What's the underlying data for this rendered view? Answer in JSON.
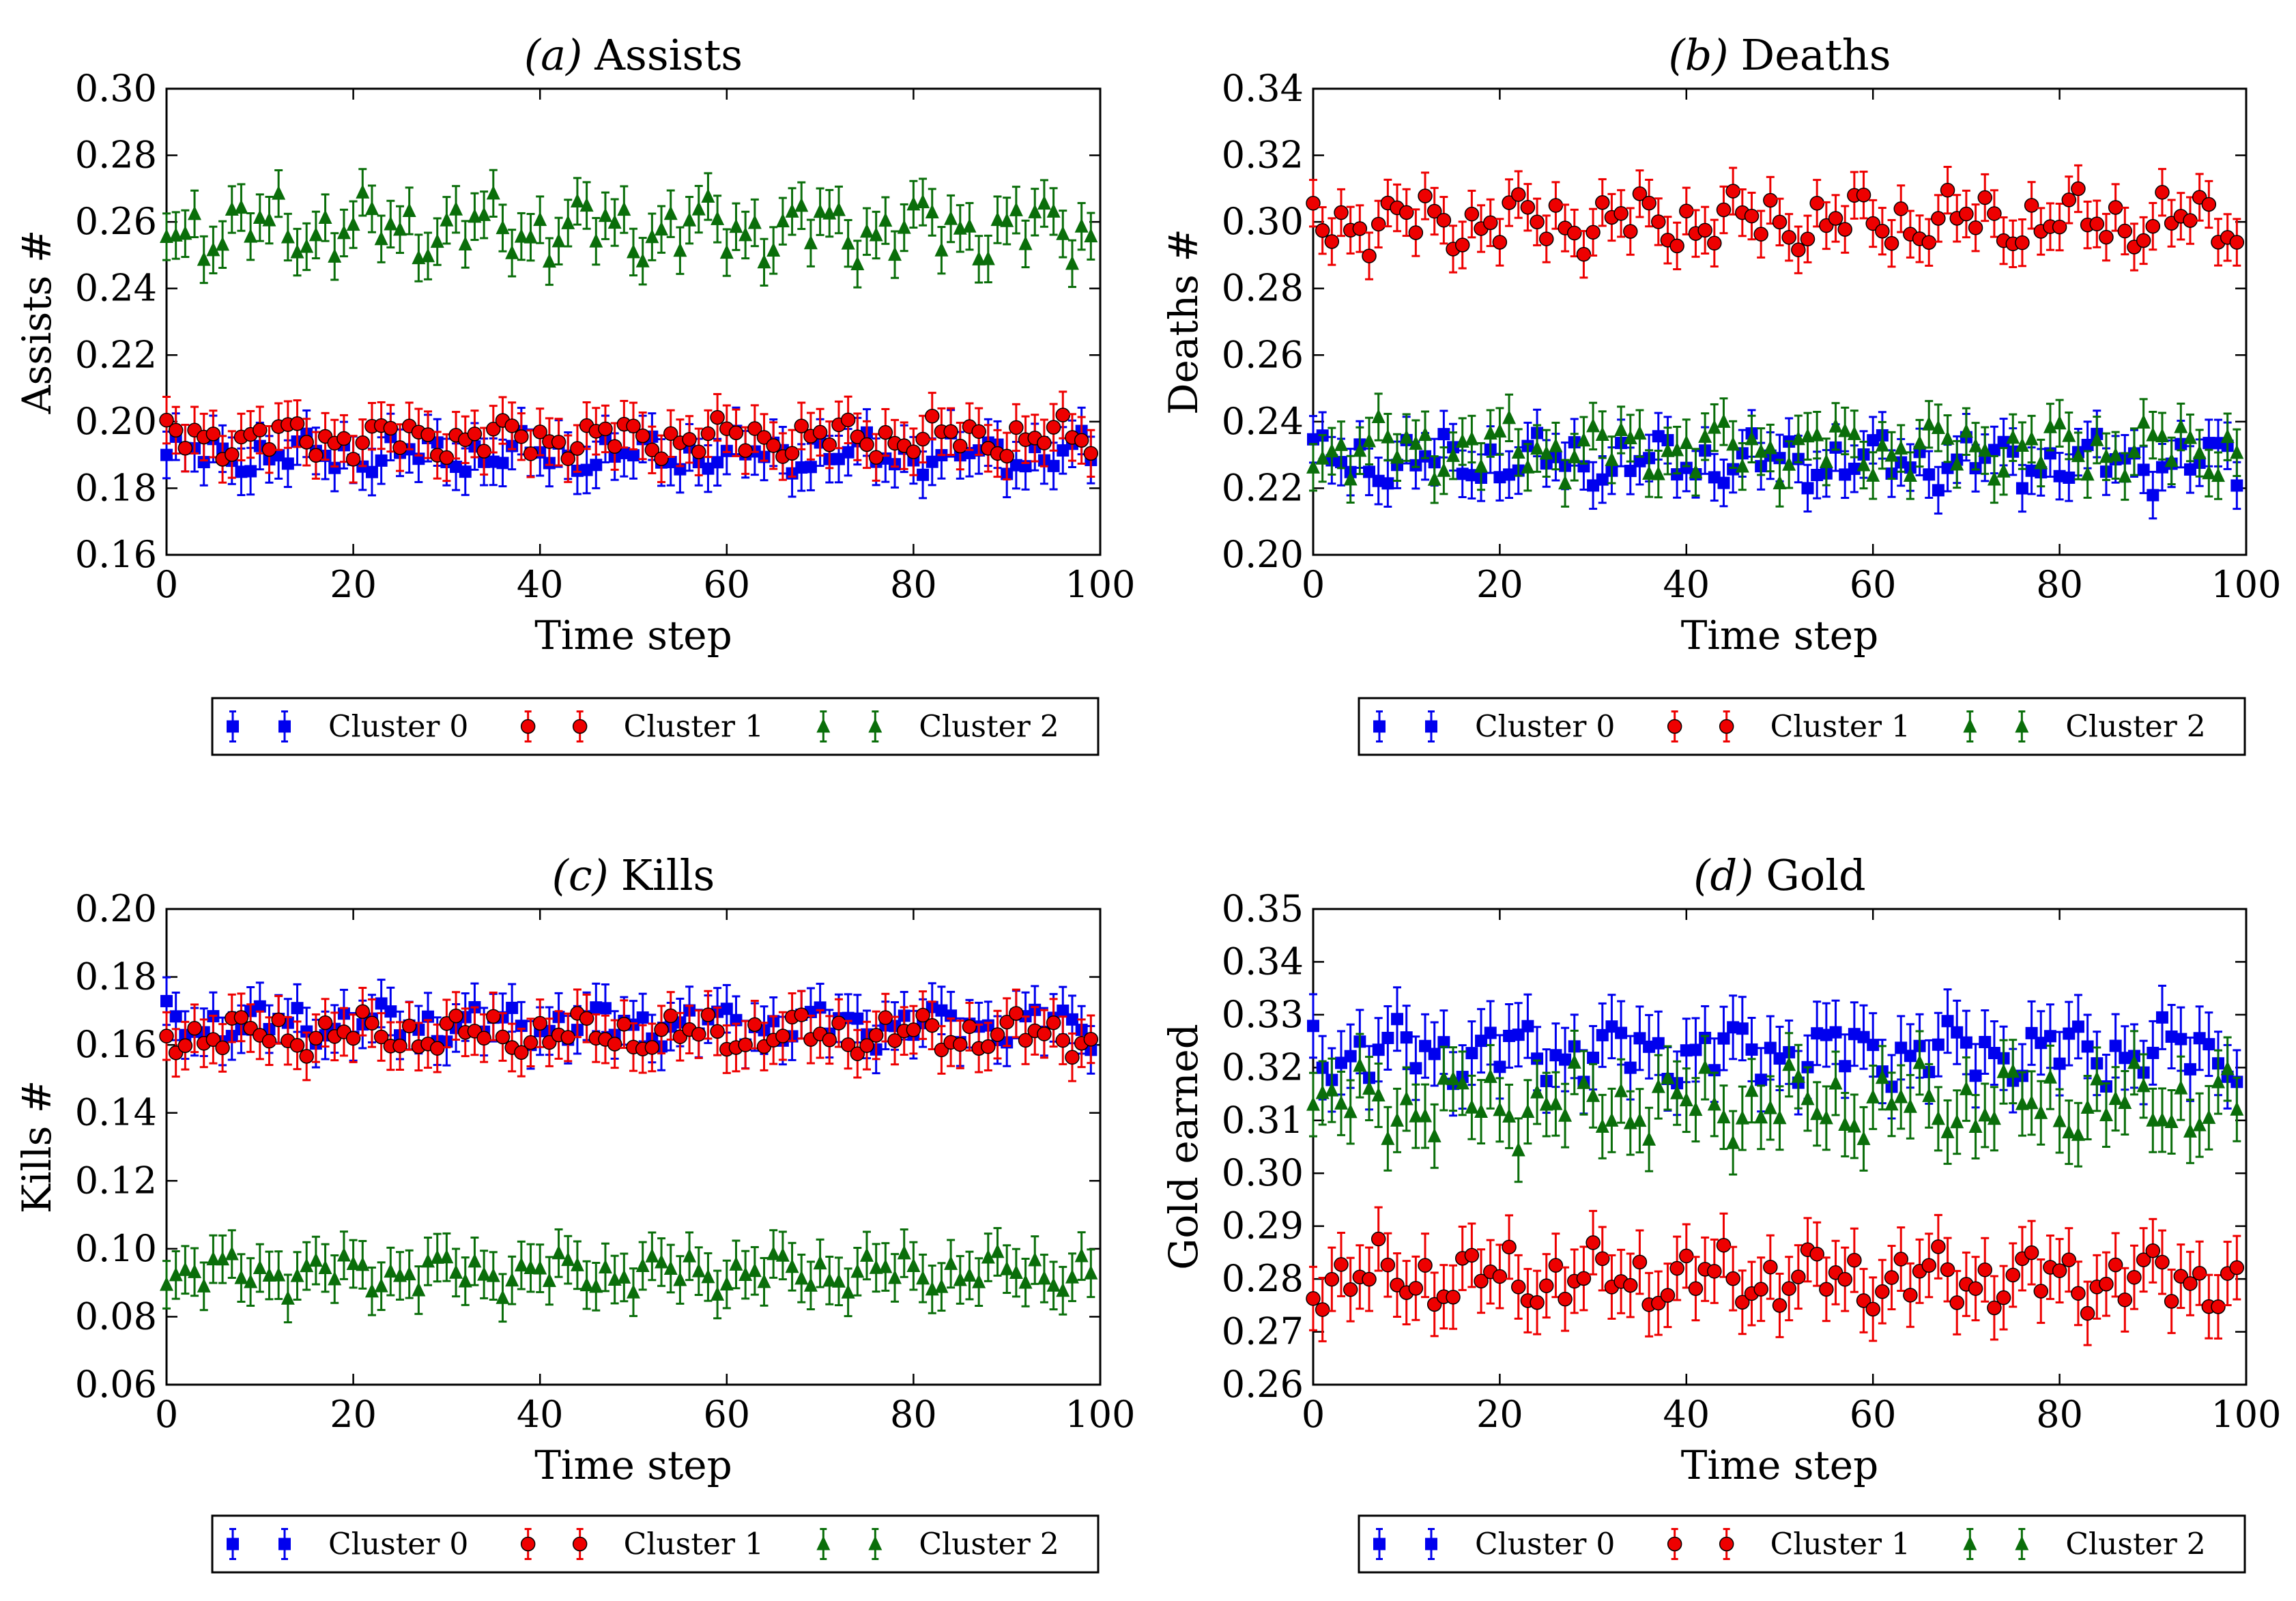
{
  "colors": {
    "cluster0": "#0000ee",
    "cluster1": "#ee0000",
    "cluster2": "#0a6e0a",
    "axis": "#000000"
  },
  "legend": [
    "Cluster 0",
    "Cluster 1",
    "Cluster 2"
  ],
  "chart_data": [
    {
      "type": "scatter",
      "panel": "a",
      "title_prefix": "(a)",
      "title": "Assists",
      "xlabel": "Time step",
      "ylabel": "Assists #",
      "xlim": [
        0,
        100
      ],
      "ylim": [
        0.16,
        0.3
      ],
      "xticks": [
        0,
        20,
        40,
        60,
        80,
        100
      ],
      "yticks": [
        0.16,
        0.18,
        0.2,
        0.22,
        0.24,
        0.26,
        0.28,
        0.3
      ],
      "ytick_labels": [
        "0.16",
        "0.18",
        "0.20",
        "0.22",
        "0.24",
        "0.26",
        "0.28",
        "0.30"
      ],
      "xtick_labels": [
        "0",
        "20",
        "40",
        "60",
        "80",
        "100"
      ],
      "error": 0.007,
      "series": [
        {
          "name": "Cluster 0",
          "marker": "square",
          "base": 0.19,
          "amp": 0.006
        },
        {
          "name": "Cluster 1",
          "marker": "circle",
          "base": 0.195,
          "amp": 0.006
        },
        {
          "name": "Cluster 2",
          "marker": "triangle",
          "base": 0.258,
          "amp": 0.01
        }
      ]
    },
    {
      "type": "scatter",
      "panel": "b",
      "title_prefix": "(b)",
      "title": "Deaths",
      "xlabel": "Time step",
      "ylabel": "Deaths #",
      "xlim": [
        0,
        100
      ],
      "ylim": [
        0.2,
        0.34
      ],
      "xticks": [
        0,
        20,
        40,
        60,
        80,
        100
      ],
      "yticks": [
        0.2,
        0.22,
        0.24,
        0.26,
        0.28,
        0.3,
        0.32,
        0.34
      ],
      "ytick_labels": [
        "0.20",
        "0.22",
        "0.24",
        "0.26",
        "0.28",
        "0.30",
        "0.32",
        "0.34"
      ],
      "xtick_labels": [
        "0",
        "20",
        "40",
        "60",
        "80",
        "100"
      ],
      "error": 0.007,
      "series": [
        {
          "name": "Cluster 0",
          "marker": "square",
          "base": 0.228,
          "amp": 0.008
        },
        {
          "name": "Cluster 1",
          "marker": "circle",
          "base": 0.3,
          "amp": 0.009
        },
        {
          "name": "Cluster 2",
          "marker": "triangle",
          "base": 0.232,
          "amp": 0.009
        }
      ]
    },
    {
      "type": "scatter",
      "panel": "c",
      "title_prefix": "(c)",
      "title": "Kills",
      "xlabel": "Time step",
      "ylabel": "Kills #",
      "xlim": [
        0,
        100
      ],
      "ylim": [
        0.06,
        0.2
      ],
      "xticks": [
        0,
        20,
        40,
        60,
        80,
        100
      ],
      "yticks": [
        0.06,
        0.08,
        0.1,
        0.12,
        0.14,
        0.16,
        0.18,
        0.2
      ],
      "ytick_labels": [
        "0.06",
        "0.08",
        "0.10",
        "0.12",
        "0.14",
        "0.16",
        "0.18",
        "0.20"
      ],
      "xtick_labels": [
        "0",
        "20",
        "40",
        "60",
        "80",
        "100"
      ],
      "error": 0.007,
      "series": [
        {
          "name": "Cluster 0",
          "marker": "square",
          "base": 0.166,
          "amp": 0.006
        },
        {
          "name": "Cluster 1",
          "marker": "circle",
          "base": 0.163,
          "amp": 0.006
        },
        {
          "name": "Cluster 2",
          "marker": "triangle",
          "base": 0.093,
          "amp": 0.006
        }
      ]
    },
    {
      "type": "scatter",
      "panel": "d",
      "title_prefix": "(d)",
      "title": "Gold",
      "xlabel": "Time step",
      "ylabel": "Gold earned",
      "xlim": [
        0,
        100
      ],
      "ylim": [
        0.26,
        0.35
      ],
      "xticks": [
        0,
        20,
        40,
        60,
        80,
        100
      ],
      "yticks": [
        0.26,
        0.27,
        0.28,
        0.29,
        0.3,
        0.31,
        0.32,
        0.33,
        0.34,
        0.35
      ],
      "ytick_labels": [
        "0.26",
        "0.27",
        "0.28",
        "0.29",
        "0.30",
        "0.31",
        "0.32",
        "0.33",
        "0.34",
        "0.35"
      ],
      "xtick_labels": [
        "0",
        "20",
        "40",
        "60",
        "80",
        "100"
      ],
      "error": 0.006,
      "series": [
        {
          "name": "Cluster 0",
          "marker": "square",
          "base": 0.323,
          "amp": 0.006
        },
        {
          "name": "Cluster 1",
          "marker": "circle",
          "base": 0.28,
          "amp": 0.006
        },
        {
          "name": "Cluster 2",
          "marker": "triangle",
          "base": 0.313,
          "amp": 0.007
        }
      ]
    }
  ]
}
